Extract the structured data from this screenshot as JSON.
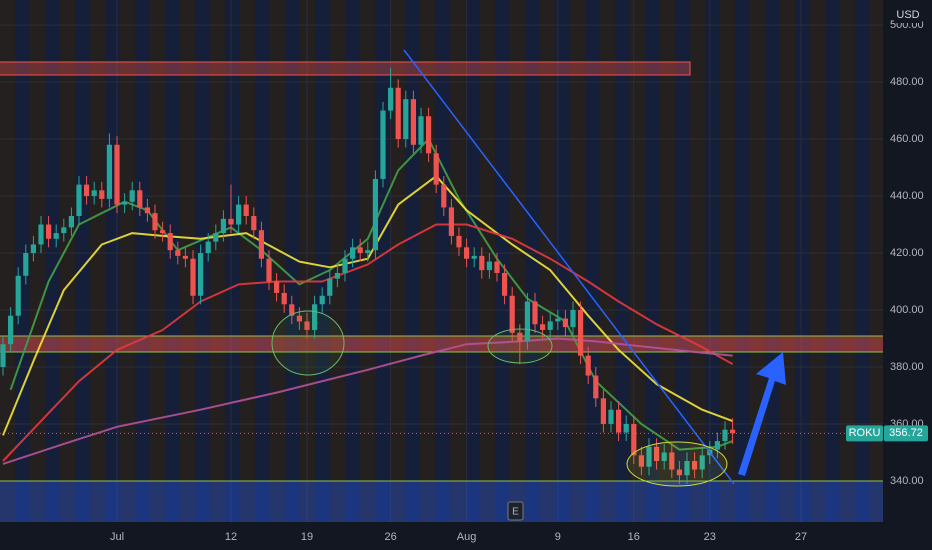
{
  "chart_data": {
    "type": "candlestick",
    "currency": "USD",
    "ylim": [
      325.6,
      508.8
    ],
    "yticks": [
      {
        "value": 500,
        "label": "500.00"
      },
      {
        "value": 480,
        "label": "480.00"
      },
      {
        "value": 460,
        "label": "460.00"
      },
      {
        "value": 440,
        "label": "440.00"
      },
      {
        "value": 420,
        "label": "420.00"
      },
      {
        "value": 400,
        "label": "400.00"
      },
      {
        "value": 380,
        "label": "380.00"
      },
      {
        "value": 360,
        "label": "360.00"
      },
      {
        "value": 340,
        "label": "340.00"
      }
    ],
    "grid": true,
    "up_color": "#26a69a",
    "down_color": "#ef5350",
    "categories": [
      null,
      null,
      null,
      null,
      null,
      null,
      null,
      null,
      null,
      null,
      null,
      null,
      null,
      null,
      null,
      "Jul",
      null,
      null,
      null,
      null,
      null,
      null,
      null,
      null,
      null,
      null,
      null,
      null,
      null,
      null,
      "12",
      null,
      null,
      null,
      null,
      null,
      null,
      null,
      null,
      null,
      "19",
      null,
      null,
      null,
      null,
      null,
      null,
      null,
      null,
      null,
      null,
      "26",
      null,
      null,
      null,
      null,
      null,
      null,
      null,
      null,
      null,
      "Aug",
      null,
      null,
      null,
      null,
      null,
      null,
      null,
      null,
      null,
      null,
      null,
      "9",
      null,
      null,
      null,
      null,
      null,
      null,
      null,
      null,
      null,
      "16",
      null,
      null,
      null,
      null,
      null,
      null,
      null,
      null,
      null,
      "23",
      null,
      null,
      null,
      null,
      null,
      null,
      null,
      null,
      null,
      null,
      null,
      "27"
    ],
    "open": [
      380,
      388,
      398,
      412,
      420,
      423,
      430,
      425,
      427,
      429,
      433,
      444,
      440,
      442,
      439,
      458,
      437,
      438,
      442,
      436,
      434,
      428,
      427,
      421,
      419,
      418,
      405,
      420,
      424,
      427,
      432,
      430,
      437,
      433,
      428,
      418,
      410,
      406,
      402,
      398,
      396,
      393,
      402,
      405,
      411,
      413,
      418,
      422,
      420,
      421,
      446,
      470,
      478,
      460,
      474,
      458,
      468,
      455,
      444,
      436,
      426,
      422,
      418,
      419,
      414,
      417,
      413,
      405,
      392,
      389,
      403,
      395,
      393,
      396,
      397,
      394,
      400,
      384,
      377,
      369,
      360,
      365,
      357,
      360,
      349,
      345,
      352,
      347,
      350,
      344,
      342,
      347,
      344,
      349,
      351,
      354,
      358,
      null,
      null,
      null,
      null,
      null,
      null,
      null,
      null,
      null
    ],
    "high": [
      391,
      401,
      415,
      423,
      426,
      433,
      433,
      430,
      432,
      436,
      447,
      447,
      445,
      445,
      462,
      461,
      441,
      445,
      445,
      439,
      437,
      431,
      430,
      424,
      422,
      421,
      423,
      427,
      430,
      435,
      444,
      440,
      440,
      436,
      431,
      421,
      413,
      409,
      405,
      401,
      399,
      405,
      408,
      414,
      416,
      421,
      425,
      425,
      424,
      449,
      473,
      485,
      481,
      477,
      477,
      471,
      471,
      458,
      447,
      439,
      429,
      425,
      422,
      422,
      420,
      420,
      416,
      408,
      395,
      406,
      406,
      398,
      399,
      400,
      400,
      403,
      403,
      387,
      380,
      372,
      368,
      368,
      363,
      363,
      352,
      355,
      355,
      353,
      353,
      347,
      350,
      350,
      352,
      354,
      357,
      361,
      362,
      null,
      null,
      null,
      null,
      null,
      null,
      null,
      null,
      null
    ],
    "low": [
      377,
      385,
      395,
      409,
      417,
      420,
      422,
      422,
      424,
      426,
      430,
      437,
      437,
      436,
      436,
      434,
      434,
      435,
      433,
      431,
      425,
      424,
      418,
      416,
      415,
      402,
      402,
      417,
      421,
      424,
      427,
      427,
      430,
      425,
      415,
      407,
      403,
      399,
      395,
      393,
      390,
      390,
      399,
      402,
      408,
      410,
      415,
      417,
      417,
      418,
      443,
      467,
      457,
      457,
      455,
      455,
      452,
      441,
      433,
      423,
      419,
      415,
      415,
      411,
      411,
      410,
      402,
      389,
      381,
      386,
      392,
      390,
      390,
      393,
      391,
      391,
      381,
      374,
      366,
      357,
      357,
      354,
      354,
      346,
      342,
      342,
      344,
      344,
      341,
      339,
      339,
      341,
      341,
      346,
      348,
      351,
      353,
      null,
      null,
      null,
      null,
      null,
      null,
      null,
      null,
      null
    ],
    "close": [
      388,
      398,
      412,
      420,
      423,
      430,
      425,
      427,
      429,
      433,
      444,
      440,
      442,
      439,
      458,
      437,
      438,
      442,
      436,
      434,
      428,
      427,
      421,
      419,
      418,
      405,
      420,
      424,
      427,
      432,
      430,
      437,
      433,
      428,
      418,
      410,
      406,
      402,
      398,
      396,
      393,
      402,
      405,
      411,
      413,
      418,
      422,
      420,
      421,
      446,
      470,
      478,
      460,
      474,
      458,
      468,
      455,
      444,
      436,
      426,
      422,
      418,
      419,
      414,
      417,
      413,
      405,
      392,
      389,
      403,
      395,
      393,
      396,
      397,
      394,
      400,
      384,
      377,
      369,
      360,
      365,
      357,
      360,
      349,
      345,
      352,
      347,
      350,
      344,
      342,
      347,
      344,
      349,
      351,
      354,
      358,
      356.72,
      null,
      null,
      null,
      null,
      null,
      null,
      null,
      null,
      null
    ],
    "indicators": [
      {
        "color": "#43a047",
        "x": [
          1,
          6,
          10,
          16,
          19,
          23,
          30,
          34,
          39,
          43,
          48,
          52,
          56,
          60,
          65,
          69,
          74,
          78,
          84,
          89,
          94,
          96
        ],
        "values": [
          372,
          410,
          430,
          438,
          435,
          421,
          429,
          421,
          409,
          414,
          425,
          449,
          460,
          439,
          418,
          404,
          396,
          375,
          360,
          351,
          352,
          354
        ]
      },
      {
        "color": "#f2e43a",
        "x": [
          0,
          4,
          8,
          13,
          17,
          21,
          26,
          32,
          39,
          43,
          48,
          52,
          57,
          61,
          67,
          72,
          77,
          81,
          86,
          92,
          96
        ],
        "values": [
          356,
          382,
          407,
          423,
          427,
          426,
          425,
          427,
          417,
          415,
          418,
          437,
          447,
          435,
          423,
          414,
          398,
          386,
          374,
          365,
          361
        ]
      },
      {
        "color": "#e5393f",
        "x": [
          0,
          5,
          10,
          15,
          21,
          26,
          31,
          36,
          42,
          48,
          52,
          57,
          61,
          67,
          72,
          77,
          81,
          86,
          92,
          96
        ],
        "values": [
          347,
          361,
          375,
          386,
          393,
          403,
          409,
          410,
          410,
          416,
          423,
          430,
          430,
          425,
          418,
          410,
          403,
          395,
          387,
          381
        ]
      },
      {
        "color": "#b4539a",
        "x": [
          0,
          8,
          15,
          26,
          36,
          48,
          55,
          61,
          68,
          73,
          78,
          85,
          92,
          96
        ],
        "values": [
          346,
          353,
          359,
          365,
          371,
          379,
          384,
          388,
          389,
          390,
          389,
          387,
          385,
          384
        ]
      }
    ],
    "price_label": {
      "symbol": "ROKU",
      "value": 356.72
    }
  }
}
